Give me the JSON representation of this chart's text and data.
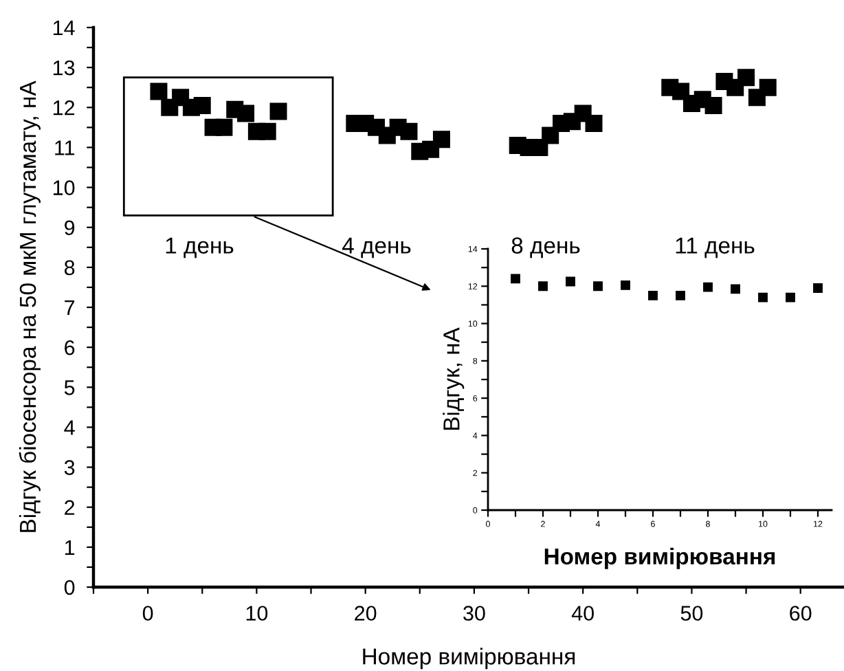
{
  "chart_data": [
    {
      "type": "scatter",
      "xlabel": "Номер вимірювання",
      "ylabel": "Відгук біосенсора на 50 мкМ глутамату, нА",
      "marker": "square",
      "grid": false,
      "legend": false,
      "xlim": [
        -5,
        64
      ],
      "ylim": [
        0,
        14
      ],
      "xticks": [
        {
          "value": -5,
          "label": null
        },
        0,
        {
          "value": 5,
          "label": null
        },
        10,
        {
          "value": 15,
          "label": null
        },
        20,
        {
          "value": 25,
          "label": null
        },
        30,
        {
          "value": 35,
          "label": null
        },
        40,
        {
          "value": 45,
          "label": null
        },
        50,
        {
          "value": 55,
          "label": null
        },
        60
      ],
      "yticks": [
        0,
        {
          "value": 0.5,
          "label": null
        },
        1,
        {
          "value": 1.5,
          "label": null
        },
        2,
        {
          "value": 2.5,
          "label": null
        },
        3,
        {
          "value": 3.5,
          "label": null
        },
        4,
        {
          "value": 4.5,
          "label": null
        },
        5,
        {
          "value": 5.5,
          "label": null
        },
        6,
        {
          "value": 6.5,
          "label": null
        },
        7,
        {
          "value": 7.5,
          "label": null
        },
        8,
        {
          "value": 8.5,
          "label": null
        },
        9,
        {
          "value": 9.5,
          "label": null
        },
        10,
        {
          "value": 10.5,
          "label": null
        },
        11,
        {
          "value": 11.5,
          "label": null
        },
        12,
        {
          "value": 12.5,
          "label": null
        },
        13,
        {
          "value": 13.5,
          "label": null
        },
        14
      ],
      "series": [
        {
          "color": "#000000",
          "x": [
            1,
            2,
            3,
            4,
            5,
            6,
            7,
            8,
            9,
            10,
            11,
            12,
            19,
            20,
            21,
            22,
            23,
            24,
            25,
            26,
            27,
            34,
            35,
            36,
            37,
            38,
            39,
            40,
            41,
            48,
            49,
            50,
            51,
            52,
            53,
            54,
            55,
            56,
            57
          ],
          "values": [
            12.4,
            12.0,
            12.25,
            12.0,
            12.05,
            11.5,
            11.5,
            11.95,
            11.85,
            11.4,
            11.4,
            11.9,
            11.6,
            11.6,
            11.5,
            11.3,
            11.5,
            11.4,
            10.9,
            10.95,
            11.2,
            11.05,
            11.0,
            11.0,
            11.3,
            11.6,
            11.65,
            11.85,
            11.6,
            12.5,
            12.4,
            12.1,
            12.2,
            12.05,
            12.65,
            12.5,
            12.75,
            12.25,
            12.5
          ]
        }
      ],
      "annotations": [
        "1 день",
        "4 день",
        "8 день",
        "11 день"
      ]
    },
    {
      "type": "scatter",
      "xlabel": "Номер вимірювання",
      "ylabel": "Відгук, нА",
      "marker": "square",
      "grid": false,
      "legend": false,
      "xlim": [
        0,
        12.5
      ],
      "ylim": [
        0,
        14
      ],
      "xticks": [
        0,
        {
          "value": 1,
          "label": null
        },
        2,
        {
          "value": 3,
          "label": null
        },
        4,
        {
          "value": 5,
          "label": null
        },
        6,
        {
          "value": 7,
          "label": null
        },
        8,
        {
          "value": 9,
          "label": null
        },
        10,
        {
          "value": 11,
          "label": null
        },
        12
      ],
      "yticks": [
        0,
        {
          "value": 1,
          "label": null
        },
        2,
        {
          "value": 3,
          "label": null
        },
        4,
        {
          "value": 5,
          "label": null
        },
        6,
        {
          "value": 7,
          "label": null
        },
        8,
        {
          "value": 9,
          "label": null
        },
        10,
        {
          "value": 11,
          "label": null
        },
        12,
        {
          "value": 13,
          "label": null
        },
        14
      ],
      "series": [
        {
          "color": "#000000",
          "x": [
            1,
            2,
            3,
            4,
            5,
            6,
            7,
            8,
            9,
            10,
            11,
            12
          ],
          "values": [
            12.4,
            12.0,
            12.25,
            12.0,
            12.05,
            11.5,
            11.5,
            11.95,
            11.85,
            11.4,
            11.4,
            11.9
          ]
        }
      ]
    }
  ]
}
